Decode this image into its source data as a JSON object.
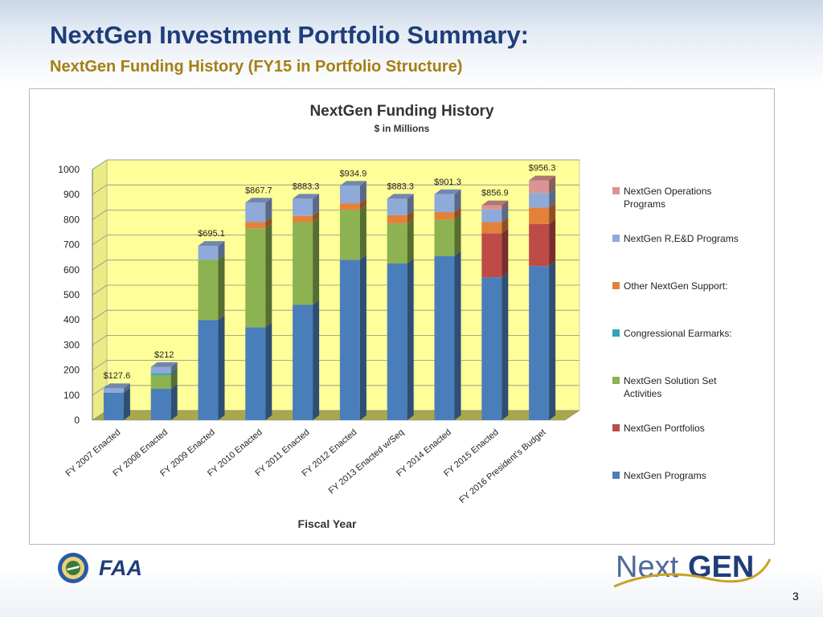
{
  "header": {
    "title": "NextGen Investment Portfolio Summary:",
    "subtitle": "NextGen Funding History (FY15 in Portfolio Structure)"
  },
  "chart_data": {
    "type": "bar",
    "stacked": true,
    "title": "NextGen Funding History",
    "subtitle": "$ in Millions",
    "xlabel": "Fiscal Year",
    "ylabel": "",
    "ylim": [
      0,
      1000
    ],
    "yticks": [
      0,
      100,
      200,
      300,
      400,
      500,
      600,
      700,
      800,
      900,
      1000
    ],
    "categories": [
      "FY 2007 Enacted",
      "FY 2008 Enacted",
      "FY 2009 Enacted",
      "FY 2010 Enacted",
      "FY 2011 Enacted",
      "FY 2012 Enacted",
      "FY 2013 Enacted w/Seq",
      "FY 2014 Enacted",
      "FY 2015 Enacted",
      "FY 2016 President's Budget"
    ],
    "totals": [
      127.6,
      212,
      695.1,
      867.7,
      883.3,
      934.9,
      883.3,
      901.3,
      856.9,
      956.3
    ],
    "total_labels": [
      "$127.6",
      "$212",
      "$695.1",
      "$867.7",
      "$883.3",
      "$934.9",
      "$883.3",
      "$901.3",
      "$856.9",
      "$956.3"
    ],
    "series": [
      {
        "name": "NextGen Programs",
        "color": "#4a7ebb",
        "values": [
          110,
          125,
          400,
          370,
          460,
          640,
          625,
          655,
          570,
          615
        ]
      },
      {
        "name": "NextGen Portfolios",
        "color": "#be4b48",
        "values": [
          0,
          0,
          0,
          0,
          0,
          0,
          0,
          0,
          175,
          168
        ]
      },
      {
        "name": "NextGen Solution Set Activities",
        "color": "#8cb251",
        "values": [
          0,
          55,
          240,
          395,
          330,
          200,
          160,
          145,
          0,
          0
        ]
      },
      {
        "name": "Congressional Earmarks:",
        "color": "#31a2b8",
        "values": [
          0,
          7,
          0,
          0,
          0,
          0,
          0,
          0,
          0,
          0
        ]
      },
      {
        "name": "Other NextGen Support:",
        "color": "#e3813a",
        "values": [
          0,
          0,
          0,
          25,
          25,
          25,
          33,
          30,
          45,
          65
        ]
      },
      {
        "name": "NextGen R,E&D Programs",
        "color": "#8fa9d9",
        "values": [
          17.6,
          25,
          55.1,
          77.7,
          68.3,
          69.9,
          65.3,
          71.3,
          50.9,
          58.3
        ]
      },
      {
        "name": "NextGen Operations Programs",
        "color": "#d99594",
        "values": [
          0,
          0,
          0,
          0,
          0,
          0,
          0,
          0,
          16,
          50
        ]
      }
    ],
    "legend_order": [
      "NextGen Operations Programs",
      "NextGen R,E&D Programs",
      "Other NextGen Support:",
      "Congressional Earmarks:",
      "NextGen Solution Set Activities",
      "NextGen Portfolios",
      "NextGen Programs"
    ],
    "legend_labels": [
      [
        "NextGen Operations",
        "Programs"
      ],
      [
        "NextGen R,E&D Programs"
      ],
      [
        "Other NextGen Support:"
      ],
      [
        "Congressional Earmarks:"
      ],
      [
        "NextGen Solution Set",
        "Activities"
      ],
      [
        "NextGen Portfolios"
      ],
      [
        "NextGen Programs"
      ]
    ],
    "legend_position": "right",
    "plot_background": "#ffff99"
  },
  "footer": {
    "faa_label": "FAA",
    "logo_text_next": "Next",
    "logo_text_gen": "GEN",
    "page_number": "3"
  },
  "colors": {
    "title": "#1f3d7a",
    "subtitle": "#a47f12"
  }
}
